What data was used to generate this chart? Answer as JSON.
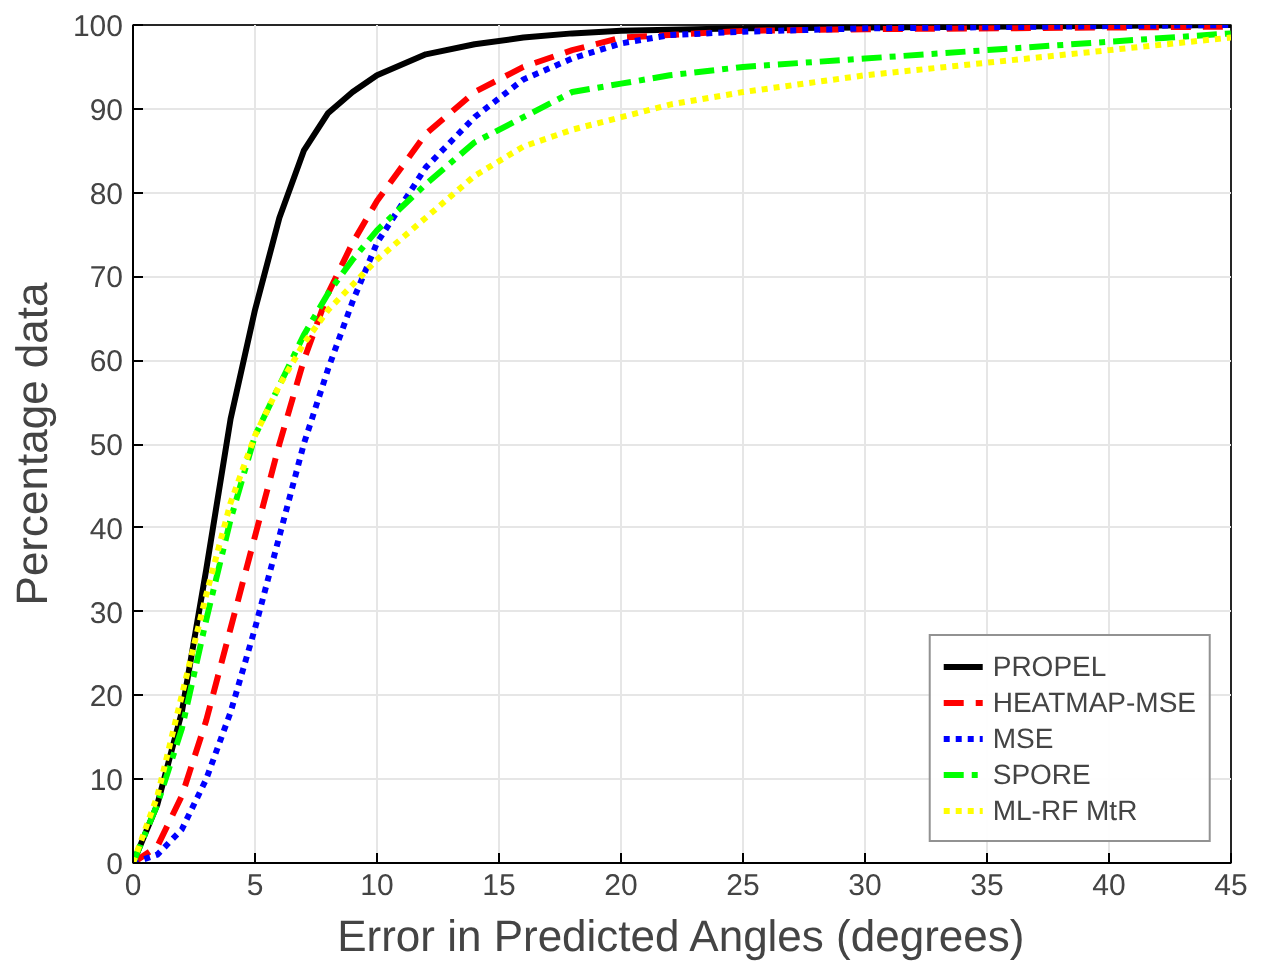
{
  "chart_data": {
    "type": "line",
    "xlabel": "Error in Predicted Angles (degrees)",
    "ylabel": "Percentage data",
    "xlim": [
      0,
      45
    ],
    "ylim": [
      0,
      100
    ],
    "xticks": [
      0,
      5,
      10,
      15,
      20,
      25,
      30,
      35,
      40,
      45
    ],
    "yticks": [
      0,
      10,
      20,
      30,
      40,
      50,
      60,
      70,
      80,
      90,
      100
    ],
    "grid": true,
    "legend": "bottom right",
    "series": [
      {
        "name": "PROPEL",
        "color": "#000000",
        "line_style": "solid",
        "x": [
          0,
          1,
          2,
          3,
          4,
          5,
          6,
          7,
          8,
          9,
          10,
          12,
          14,
          16,
          18,
          20,
          25,
          30,
          45
        ],
        "values": [
          0,
          7,
          18,
          35,
          53,
          66,
          77,
          85,
          89.5,
          92,
          94,
          96.5,
          97.7,
          98.5,
          99,
          99.3,
          99.6,
          99.7,
          100
        ]
      },
      {
        "name": "HEATMAP-MSE",
        "color": "#ff0000",
        "line_style": "dashed",
        "x": [
          0,
          1,
          2,
          3,
          4,
          5,
          6,
          7,
          8,
          9,
          10,
          12,
          14,
          16,
          18,
          20,
          25,
          30,
          45
        ],
        "values": [
          0,
          2,
          8,
          17,
          28,
          39,
          50,
          60,
          68,
          74,
          79,
          87,
          92,
          95,
          97,
          98.5,
          99.3,
          99.5,
          99.8
        ]
      },
      {
        "name": "MSE",
        "color": "#0000ff",
        "line_style": "dotted",
        "x": [
          0,
          1,
          2,
          3,
          4,
          5,
          6,
          7,
          8,
          9,
          10,
          12,
          14,
          16,
          18,
          20,
          22,
          25,
          30,
          45
        ],
        "values": [
          0,
          1,
          4,
          10,
          18,
          28,
          39,
          50,
          59,
          67,
          74,
          83,
          89,
          93.5,
          96,
          97.8,
          98.8,
          99.2,
          99.6,
          100
        ]
      },
      {
        "name": "SPORE",
        "color": "#00ff00",
        "line_style": "dashdot",
        "x": [
          0,
          1,
          2,
          3,
          4,
          5,
          6,
          7,
          8,
          9,
          10,
          12,
          14,
          16,
          18,
          20,
          22,
          25,
          30,
          35,
          40,
          45
        ],
        "values": [
          0,
          7,
          16,
          29,
          41,
          51,
          57,
          63,
          68,
          72,
          75.5,
          81,
          86,
          89,
          92,
          93,
          94,
          95,
          96,
          97,
          98,
          99
        ]
      },
      {
        "name": "ML-RF MtR",
        "color": "#ffff00",
        "line_style": "dotted",
        "x": [
          0,
          1,
          2,
          3,
          4,
          5,
          6,
          7,
          8,
          9,
          10,
          12,
          14,
          16,
          18,
          20,
          22,
          25,
          30,
          35,
          40,
          45
        ],
        "values": [
          0,
          8,
          20,
          32,
          43,
          51,
          57,
          62,
          66,
          69,
          72,
          77,
          82,
          85.5,
          87.5,
          89,
          90.5,
          92,
          94,
          95.5,
          97,
          98.5
        ]
      }
    ]
  }
}
